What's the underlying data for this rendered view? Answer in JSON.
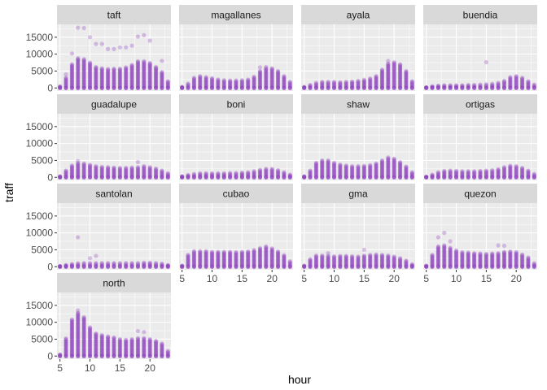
{
  "chart_data": {
    "type": "scatter",
    "facet_wrap": true,
    "ncol": 4,
    "xlabel": "hour",
    "ylabel": "traff",
    "xlim": [
      4.5,
      23.5
    ],
    "ylim": [
      -900,
      18800
    ],
    "x_ticks": [
      5,
      10,
      15,
      20
    ],
    "y_ticks": [
      0,
      5000,
      10000,
      15000
    ],
    "y_tick_labels": [
      "0",
      "5000",
      "10000",
      "15000"
    ],
    "point_color": "#8b3dbd",
    "point_alpha": 0.3,
    "panel_bg": "#ebebeb",
    "strip_bg": "#d9d9d9",
    "hours": [
      5,
      6,
      7,
      8,
      9,
      10,
      11,
      12,
      13,
      14,
      15,
      16,
      17,
      18,
      19,
      20,
      21,
      22,
      23
    ],
    "panels": [
      {
        "name": "taft",
        "dense_max": [
          500,
          3000,
          7000,
          8800,
          8500,
          7500,
          6200,
          5800,
          5600,
          5700,
          5700,
          6100,
          6800,
          7900,
          7900,
          7400,
          6200,
          4700,
          2000
        ],
        "outliers": [
          [
            6,
            4000
          ],
          [
            7,
            10200
          ],
          [
            8,
            17800
          ],
          [
            9,
            17700
          ],
          [
            10,
            15000
          ],
          [
            11,
            13000
          ],
          [
            12,
            13000
          ],
          [
            13,
            11500
          ],
          [
            14,
            11500
          ],
          [
            15,
            12000
          ],
          [
            16,
            12000
          ],
          [
            17,
            12500
          ],
          [
            18,
            15200
          ],
          [
            19,
            15600
          ],
          [
            20,
            14000
          ],
          [
            22,
            8000
          ]
        ]
      },
      {
        "name": "magallanes",
        "dense_max": [
          300,
          1300,
          3000,
          3500,
          3200,
          2900,
          2500,
          2300,
          2200,
          2200,
          2300,
          2500,
          3300,
          5000,
          5800,
          5800,
          5000,
          3500,
          1800
        ],
        "outliers": [
          [
            18,
            6100
          ],
          [
            19,
            6200
          ]
        ]
      },
      {
        "name": "ayala",
        "dense_max": [
          300,
          900,
          1500,
          1800,
          1800,
          1800,
          1700,
          1800,
          1900,
          2100,
          2400,
          2800,
          3500,
          5400,
          7200,
          7600,
          7000,
          5000,
          2000
        ],
        "outliers": [
          [
            19,
            8000
          ]
        ]
      },
      {
        "name": "buendia",
        "dense_max": [
          200,
          500,
          700,
          800,
          800,
          800,
          800,
          900,
          900,
          1000,
          1100,
          1200,
          1500,
          2100,
          3200,
          3500,
          3000,
          2000,
          1000
        ],
        "outliers": [
          [
            15,
            7600
          ]
        ]
      },
      {
        "name": "guadalupe",
        "dense_max": [
          300,
          2000,
          3500,
          4200,
          4100,
          3700,
          3300,
          3100,
          3000,
          2900,
          2800,
          2800,
          2900,
          3000,
          3300,
          3000,
          2600,
          2000,
          1200
        ],
        "outliers": [
          [
            8,
            4800
          ],
          [
            18,
            4500
          ]
        ]
      },
      {
        "name": "boni",
        "dense_max": [
          300,
          700,
          1000,
          1200,
          1200,
          1200,
          1200,
          1200,
          1300,
          1300,
          1400,
          1500,
          1800,
          2200,
          2500,
          2500,
          2100,
          1500,
          800
        ],
        "outliers": []
      },
      {
        "name": "shaw",
        "dense_max": [
          300,
          2000,
          4300,
          5000,
          5000,
          4300,
          3800,
          3500,
          3300,
          3300,
          3400,
          3600,
          4100,
          5000,
          5600,
          5500,
          4500,
          3200,
          1500
        ],
        "outliers": [
          [
            19,
            5900
          ]
        ]
      },
      {
        "name": "ortigas",
        "dense_max": [
          200,
          800,
          1500,
          1900,
          2000,
          1900,
          1800,
          1800,
          1800,
          1900,
          2000,
          2100,
          2400,
          3000,
          3400,
          3300,
          2800,
          2000,
          1000
        ],
        "outliers": []
      },
      {
        "name": "santolan",
        "dense_max": [
          200,
          500,
          800,
          1000,
          1100,
          1100,
          1100,
          1100,
          1100,
          1100,
          1100,
          1100,
          1100,
          1100,
          1200,
          1200,
          1100,
          900,
          500
        ],
        "outliers": [
          [
            8,
            8700
          ],
          [
            10,
            2500
          ],
          [
            11,
            3200
          ]
        ]
      },
      {
        "name": "cubao",
        "dense_max": [
          300,
          3500,
          4600,
          4600,
          4600,
          4400,
          4400,
          4400,
          4400,
          4300,
          4400,
          4500,
          4900,
          5500,
          5700,
          5400,
          4500,
          3400,
          1600
        ],
        "outliers": [
          [
            19,
            6000
          ]
        ]
      },
      {
        "name": "gma",
        "dense_max": [
          300,
          2200,
          3300,
          3300,
          3200,
          3100,
          3200,
          3200,
          3100,
          3000,
          3300,
          3500,
          3600,
          3500,
          3300,
          3000,
          2500,
          1800,
          700
        ],
        "outliers": [
          [
            9,
            4000
          ],
          [
            15,
            5000
          ]
        ]
      },
      {
        "name": "quezon",
        "dense_max": [
          300,
          3500,
          6000,
          6300,
          5600,
          4800,
          4300,
          4200,
          4000,
          3900,
          3800,
          3900,
          4000,
          4400,
          4500,
          4300,
          3600,
          2700,
          1000
        ],
        "outliers": [
          [
            7,
            8700
          ],
          [
            8,
            10000
          ],
          [
            9,
            7500
          ],
          [
            17,
            6300
          ],
          [
            18,
            6200
          ]
        ]
      },
      {
        "name": "north",
        "dense_max": [
          500,
          5200,
          10800,
          12800,
          11500,
          8500,
          6700,
          6200,
          5800,
          5500,
          5000,
          4800,
          5000,
          5300,
          5300,
          5000,
          4500,
          3700,
          1500
        ],
        "outliers": [
          [
            8,
            13500
          ],
          [
            18,
            7400
          ],
          [
            19,
            7100
          ]
        ]
      }
    ]
  }
}
